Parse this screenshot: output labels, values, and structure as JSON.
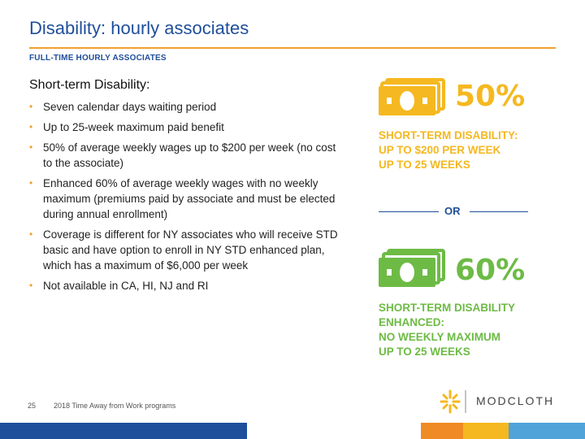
{
  "header": {
    "title": "Disability: hourly associates",
    "section_label": "FULL-TIME HOURLY ASSOCIATES"
  },
  "content": {
    "subheading": "Short-term Disability:",
    "bullets": [
      "Seven calendar days waiting period",
      "Up to 25-week maximum paid benefit",
      "50% of average weekly wages up to $200 per week (no cost to the associate)",
      "Enhanced 60% of average weekly wages with no weekly maximum (premiums paid by associate and must be elected during annual enrollment)",
      "Coverage is different for NY associates who will receive STD basic and have option to enroll in NY STD enhanced plan, which has a maximum of $6,000 per week",
      "Not available in CA, HI, NJ and RI"
    ]
  },
  "graphic": {
    "option1": {
      "percent": "50%",
      "caption_lines": [
        "SHORT-TERM DISABILITY:",
        "UP TO $200 PER WEEK",
        "UP TO 25 WEEKS"
      ],
      "color": "#f5b820"
    },
    "or_label": "OR",
    "option2": {
      "percent": "60%",
      "caption_lines": [
        "SHORT-TERM DISABILITY",
        "ENHANCED:",
        "NO WEEKLY MAXIMUM",
        "UP TO 25 WEEKS"
      ],
      "color": "#6dbb45"
    }
  },
  "footer": {
    "page_number": "25",
    "text": "2018 Time Away from Work programs",
    "logo_text": "MODCLOTH"
  },
  "colors": {
    "title": "#1f4e9a",
    "accent": "#f0a030",
    "bar_dark_blue": "#1f4e9a",
    "bar_orange": "#f08a24",
    "bar_yellow": "#f5b820",
    "bar_light_blue": "#4fa3d9"
  }
}
